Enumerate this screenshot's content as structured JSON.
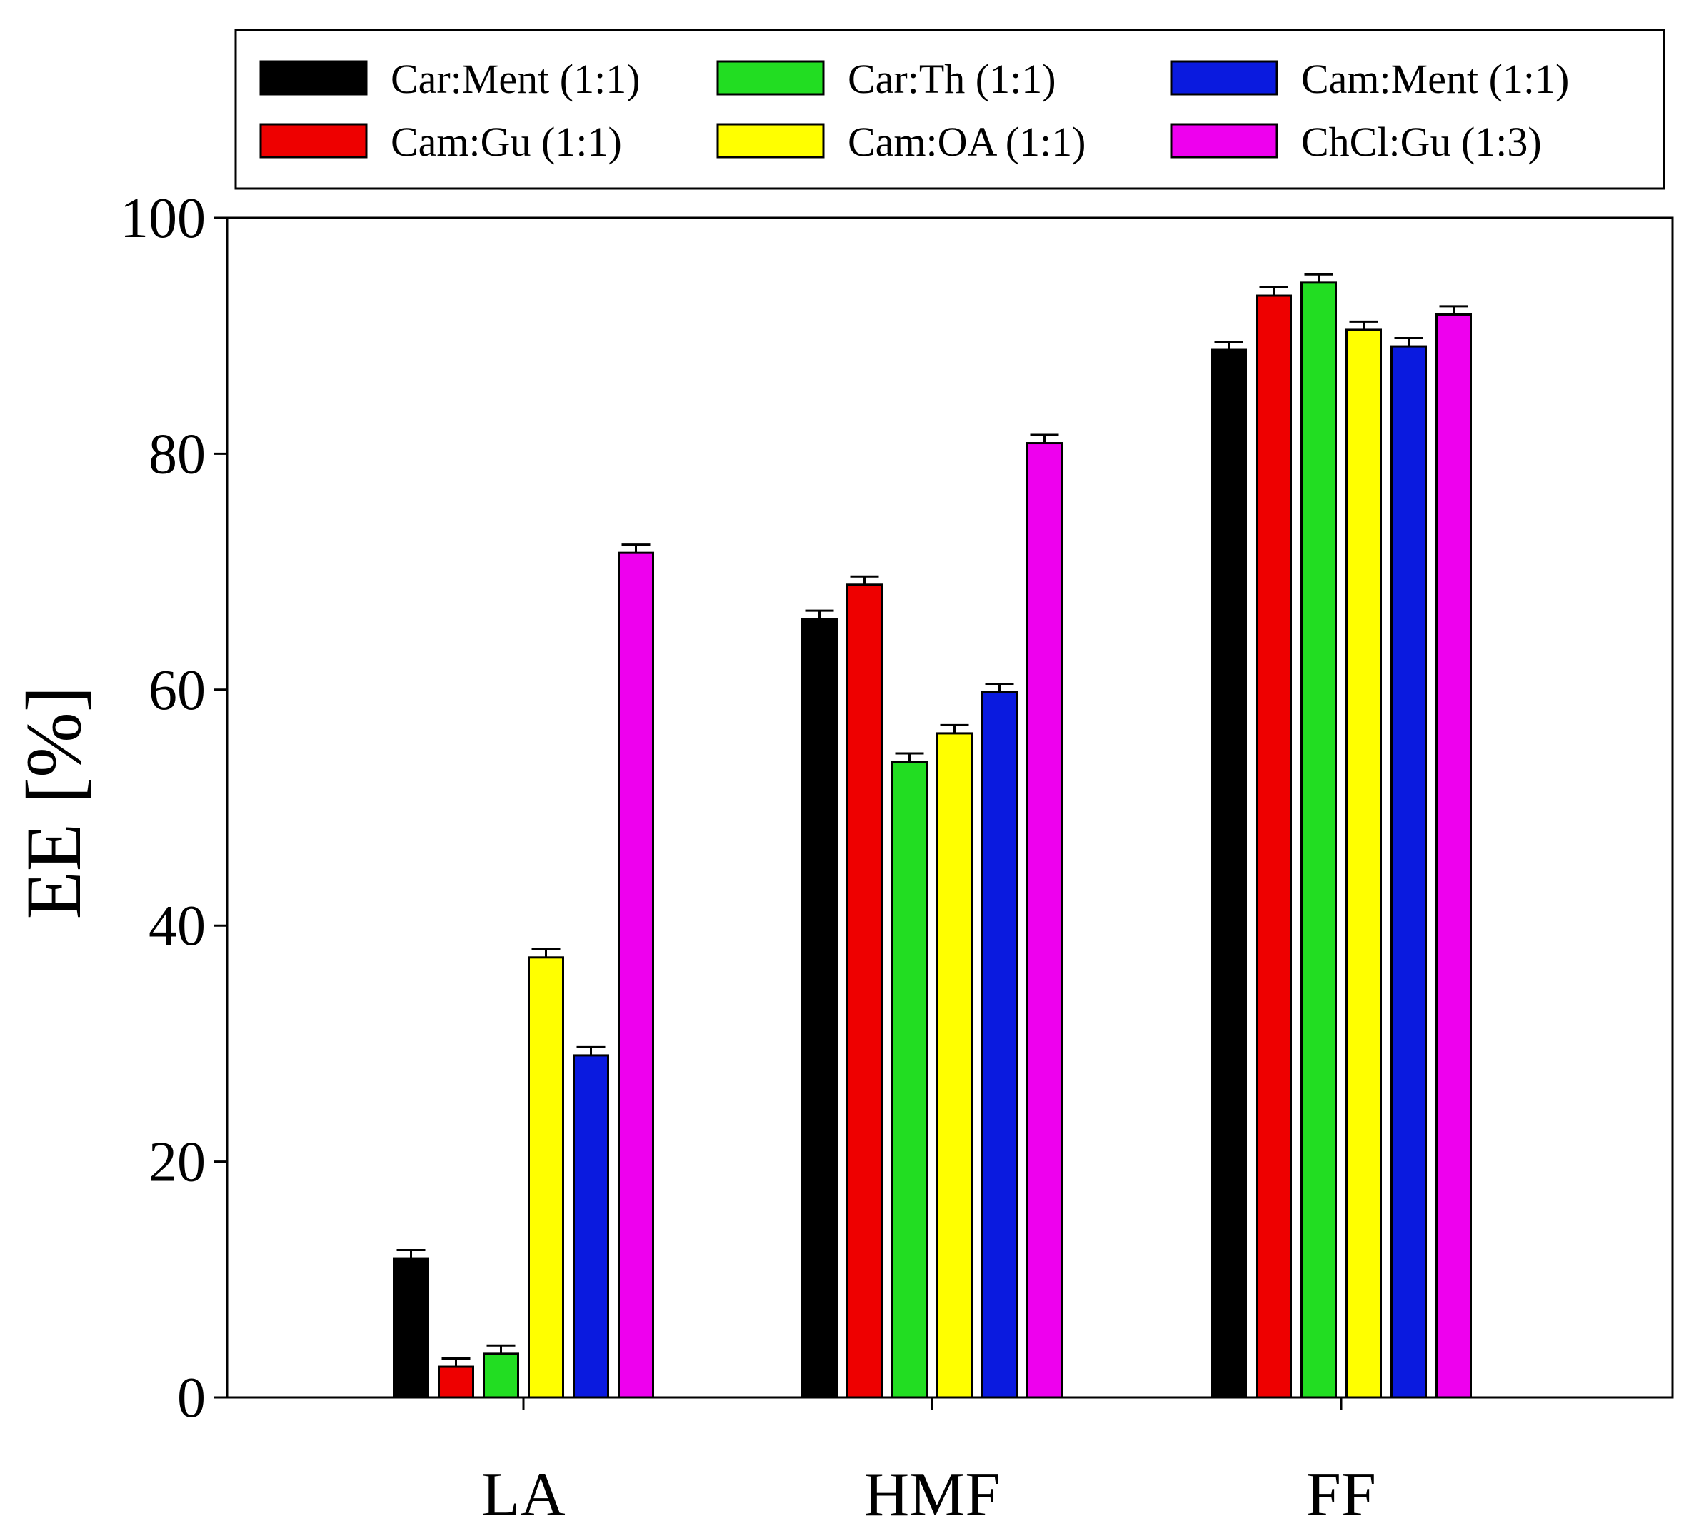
{
  "chart_data": {
    "type": "bar",
    "title": "",
    "xlabel": "",
    "ylabel": "EE [%]",
    "ylim": [
      0,
      100
    ],
    "yticks": [
      0,
      20,
      40,
      60,
      80,
      100
    ],
    "categories": [
      "LA",
      "HMF",
      "FF"
    ],
    "grid": false,
    "legend_position": "top",
    "series": [
      {
        "name": "Car:Ment (1:1)",
        "color": "#000000",
        "values": [
          11.8,
          66.0,
          88.8
        ],
        "errors": [
          0.7,
          0.7,
          0.7
        ]
      },
      {
        "name": "Cam:Gu (1:1)",
        "color": "#ee0000",
        "values": [
          2.6,
          68.9,
          93.4
        ],
        "errors": [
          0.7,
          0.7,
          0.7
        ]
      },
      {
        "name": "Car:Th (1:1)",
        "color": "#22dd22",
        "values": [
          3.7,
          53.9,
          94.5
        ],
        "errors": [
          0.7,
          0.7,
          0.7
        ]
      },
      {
        "name": "Cam:OA (1:1)",
        "color": "#ffff00",
        "values": [
          37.3,
          56.3,
          90.5
        ],
        "errors": [
          0.7,
          0.7,
          0.7
        ]
      },
      {
        "name": "Cam:Ment (1:1)",
        "color": "#0a1adf",
        "values": [
          29.0,
          59.8,
          89.1
        ],
        "errors": [
          0.7,
          0.7,
          0.7
        ]
      },
      {
        "name": "ChCl:Gu (1:3)",
        "color": "#ee00ee",
        "values": [
          71.6,
          80.9,
          91.8
        ],
        "errors": [
          0.7,
          0.7,
          0.7
        ]
      }
    ]
  }
}
